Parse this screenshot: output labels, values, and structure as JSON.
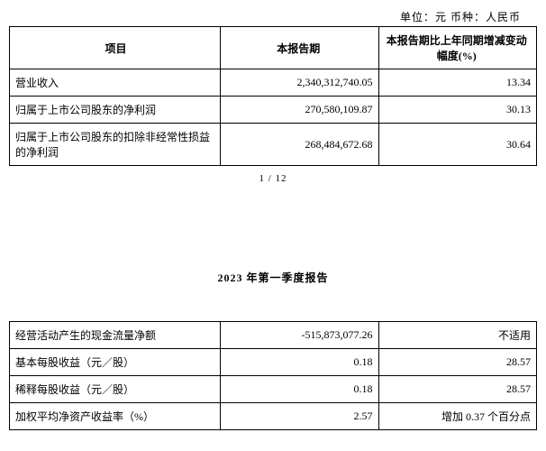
{
  "unit_line": "单位：元    币种：人民币",
  "table1": {
    "headers": {
      "c1": "项目",
      "c2": "本报告期",
      "c3": "本报告期比上年同期增减变动幅度(%)"
    },
    "rows": [
      {
        "c1": "营业收入",
        "c2": "2,340,312,740.05",
        "c3": "13.34"
      },
      {
        "c1": "归属于上市公司股东的净利润",
        "c2": "270,580,109.87",
        "c3": "30.13"
      },
      {
        "c1": "归属于上市公司股东的扣除非经常性损益的净利润",
        "c2": "268,484,672.68",
        "c3": "30.64"
      }
    ]
  },
  "pager": "1 / 12",
  "section_title": "2023 年第一季度报告",
  "table2": {
    "rows": [
      {
        "c1": "经营活动产生的现金流量净额",
        "c2": "-515,873,077.26",
        "c3": "不适用"
      },
      {
        "c1": "基本每股收益（元／股）",
        "c2": "0.18",
        "c3": "28.57"
      },
      {
        "c1": "稀释每股收益（元／股）",
        "c2": "0.18",
        "c3": "28.57"
      },
      {
        "c1": "加权平均净资产收益率（%）",
        "c2": "2.57",
        "c3": "增加 0.37 个百分点"
      }
    ]
  }
}
